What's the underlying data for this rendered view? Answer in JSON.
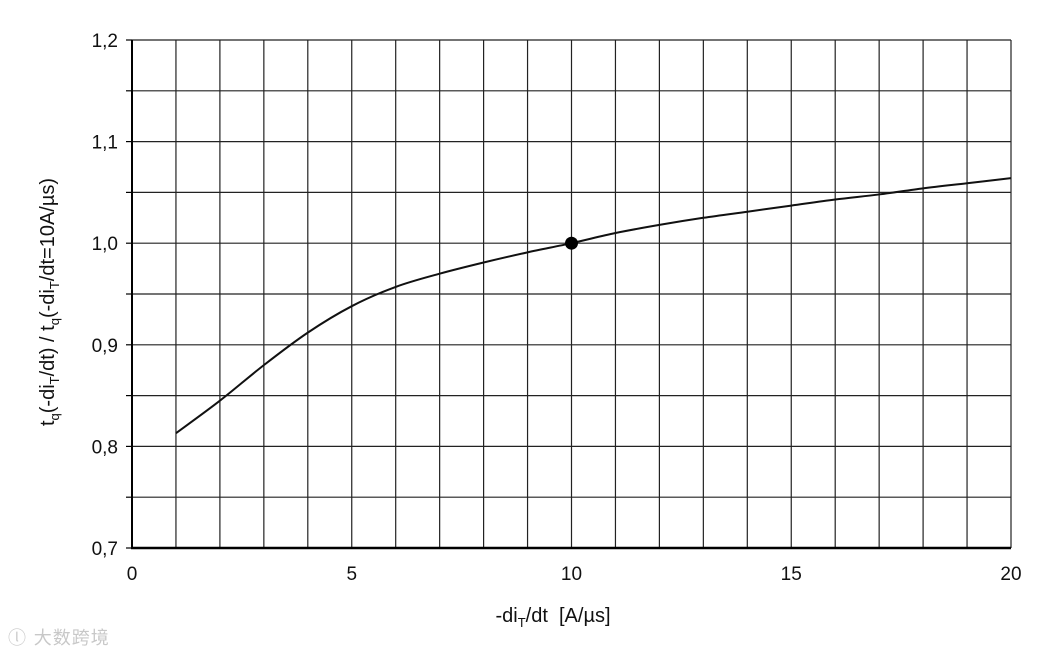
{
  "chart_data": {
    "type": "line",
    "xlabel": "-di_T/dt  [A/µs]",
    "ylabel": "t_q(-di_T/dt) / t_q(-di_T/dt=10A/µs)",
    "xlim": [
      0,
      20
    ],
    "ylim": [
      0.7,
      1.2
    ],
    "x_ticks": [
      {
        "value": 0,
        "label": "0"
      },
      {
        "value": 5,
        "label": "5"
      },
      {
        "value": 10,
        "label": "10"
      },
      {
        "value": 15,
        "label": "15"
      },
      {
        "value": 20,
        "label": "20"
      }
    ],
    "y_ticks": [
      {
        "value": 0.7,
        "label": "0,7"
      },
      {
        "value": 0.8,
        "label": "0,8"
      },
      {
        "value": 0.9,
        "label": "0,9"
      },
      {
        "value": 1.0,
        "label": "1,0"
      },
      {
        "value": 1.1,
        "label": "1,1"
      },
      {
        "value": 1.2,
        "label": "1,2"
      }
    ],
    "grid": true,
    "grid_x_step": 1,
    "grid_y_step": 0.05,
    "series": [
      {
        "x": [
          1,
          2,
          3,
          4,
          5,
          6,
          7,
          8,
          9,
          10,
          11,
          12,
          13,
          14,
          15,
          16,
          17,
          18,
          19,
          20
        ],
        "y": [
          0.813,
          0.845,
          0.88,
          0.912,
          0.938,
          0.957,
          0.97,
          0.981,
          0.991,
          1.0,
          1.01,
          1.018,
          1.025,
          1.031,
          1.037,
          1.043,
          1.048,
          1.054,
          1.059,
          1.064
        ]
      }
    ],
    "reference_point": {
      "x": 10,
      "y": 1.0
    },
    "colors": {
      "line": "#111111",
      "grid": "#222222",
      "point": "#000000"
    }
  },
  "watermark": {
    "text": "大数跨境"
  }
}
